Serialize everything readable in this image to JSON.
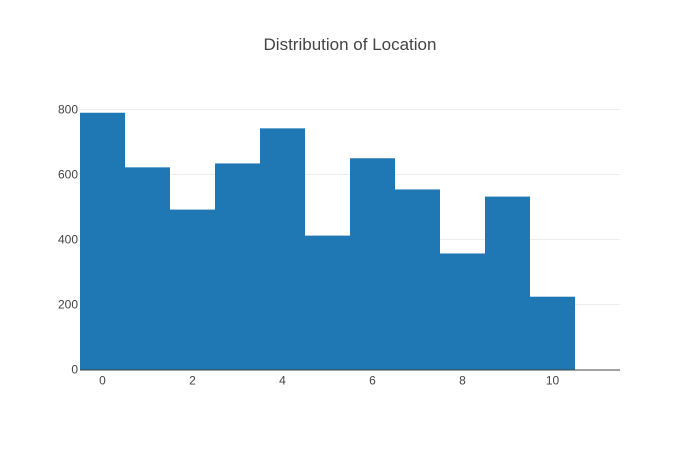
{
  "chart_data": {
    "type": "bar",
    "title": "Distribution of Location",
    "xlabel": "",
    "ylabel": "",
    "bin_width": 1,
    "bins": [
      {
        "start": -0.5,
        "end": 0.5,
        "value": 790
      },
      {
        "start": 0.5,
        "end": 1.5,
        "value": 622
      },
      {
        "start": 1.5,
        "end": 2.5,
        "value": 492
      },
      {
        "start": 2.5,
        "end": 3.5,
        "value": 634
      },
      {
        "start": 3.5,
        "end": 4.5,
        "value": 742
      },
      {
        "start": 4.5,
        "end": 5.5,
        "value": 412
      },
      {
        "start": 5.5,
        "end": 6.5,
        "value": 650
      },
      {
        "start": 6.5,
        "end": 7.5,
        "value": 554
      },
      {
        "start": 7.5,
        "end": 8.5,
        "value": 357
      },
      {
        "start": 8.5,
        "end": 9.5,
        "value": 532
      },
      {
        "start": 9.5,
        "end": 10.5,
        "value": 224
      }
    ],
    "xlim": [
      -0.5,
      11.5
    ],
    "ylim": [
      0,
      800
    ],
    "x_ticks": [
      0,
      2,
      4,
      6,
      8,
      10
    ],
    "y_ticks": [
      0,
      200,
      400,
      600,
      800
    ],
    "grid": {
      "x": false,
      "y": true
    },
    "legend": "none",
    "colors": {
      "bar": "#1f77b4",
      "grid": "#eeeeee",
      "axis_line": "#444444",
      "text": "#444444"
    }
  }
}
